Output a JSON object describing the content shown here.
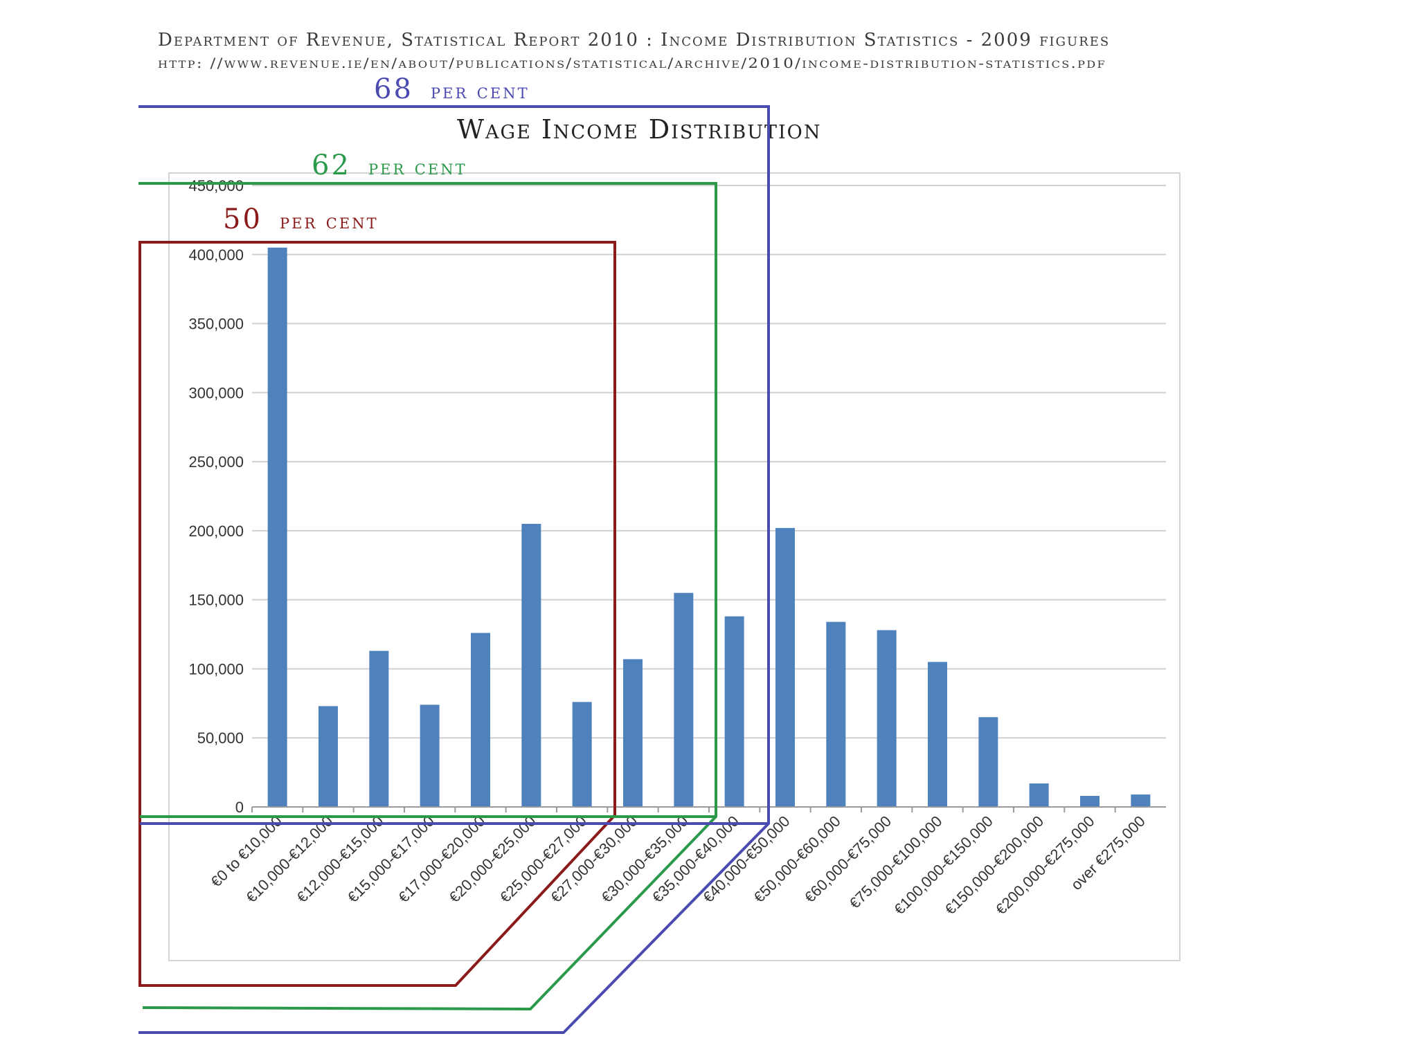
{
  "header": {
    "source_line": "Department of Revenue, Statistical Report 2010 : Income Distribution Statistics - 2009 figures",
    "url_line": "http: //www.revenue.ie/en/about/publications/statistical/archive/2010/income-distribution-statistics.pdf"
  },
  "annotations": [
    {
      "number": "68",
      "text": "per cent",
      "color": "#4a4ab0"
    },
    {
      "number": "62",
      "text": "per cent",
      "color": "#2a9a4a"
    },
    {
      "number": "50",
      "text": "per cent",
      "color": "#8b1a1a"
    }
  ],
  "chart_data": {
    "type": "bar",
    "title": "Wage Income Distribution",
    "xlabel": "",
    "ylabel": "",
    "ylim": [
      0,
      450000
    ],
    "yticks": [
      0,
      50000,
      100000,
      150000,
      200000,
      250000,
      300000,
      350000,
      400000,
      450000
    ],
    "ytick_labels": [
      "0",
      "50,000",
      "100,000",
      "150,000",
      "200,000",
      "250,000",
      "300,000",
      "350,000",
      "400,000",
      "450,000"
    ],
    "grid": true,
    "bar_color": "#4f81bd",
    "categories": [
      "€0 to €10,000",
      "€10,000-€12,000",
      "€12,000-€15,000",
      "€15,000-€17,000",
      "€17,000-€20,000",
      "€20,000-€25,000",
      "€25,000-€27,000",
      "€27,000-€30,000",
      "€30,000-€35,000",
      "€35,000-€40,000",
      "€40,000-€50,000",
      "€50,000-€60,000",
      "€60,000-€75,000",
      "€75,000-€100,000",
      "€100,000-€150,000",
      "€150,000-€200,000",
      "€200,000-€275,000",
      "over €275,000"
    ],
    "values": [
      405000,
      73000,
      113000,
      74000,
      126000,
      205000,
      76000,
      107000,
      155000,
      138000,
      202000,
      134000,
      128000,
      105000,
      65000,
      17000,
      8000,
      9000
    ]
  }
}
